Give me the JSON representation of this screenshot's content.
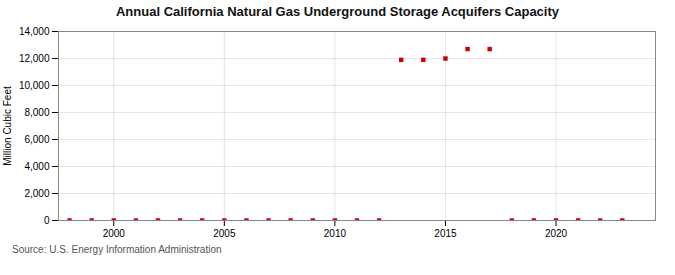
{
  "chart_data": {
    "type": "scatter",
    "title": "Annual California Natural Gas Underground Storage Acquifers Capacity",
    "ylabel": "Million Cubic Feet",
    "source": "Source: U.S. Energy Information Administration",
    "x": [
      1998,
      1999,
      2000,
      2001,
      2002,
      2003,
      2004,
      2005,
      2006,
      2007,
      2008,
      2009,
      2010,
      2011,
      2012,
      2013,
      2014,
      2015,
      2016,
      2017,
      2018,
      2019,
      2020,
      2021,
      2022,
      2023
    ],
    "values": [
      0,
      0,
      0,
      0,
      0,
      0,
      0,
      0,
      0,
      0,
      0,
      0,
      0,
      0,
      0,
      11900,
      11900,
      12000,
      12700,
      12700,
      0,
      0,
      0,
      0,
      0,
      0
    ],
    "color": "#cc0000",
    "marker": "square",
    "xlim": [
      1997.5,
      2024.5
    ],
    "xticks": [
      2000,
      2005,
      2010,
      2015,
      2020
    ],
    "ylim": [
      0,
      14000
    ],
    "yticks": [
      0,
      {
        "value": 2000,
        "label": "2,000"
      },
      {
        "value": 4000,
        "label": "4,000"
      },
      {
        "value": 6000,
        "label": "6,000"
      },
      {
        "value": 8000,
        "label": "8,000"
      },
      {
        "value": 10000,
        "label": "10,000"
      },
      {
        "value": 12000,
        "label": "12,000"
      },
      {
        "value": 14000,
        "label": "14,000"
      }
    ],
    "grid": true
  }
}
